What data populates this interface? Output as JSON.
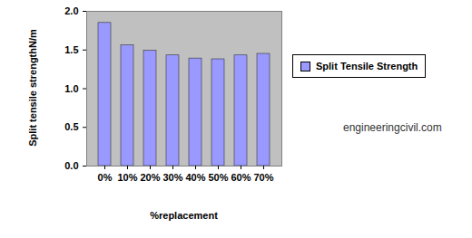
{
  "chart_data": {
    "type": "bar",
    "categories": [
      "0%",
      "10%",
      "20%",
      "30%",
      "40%",
      "50%",
      "60%",
      "70%"
    ],
    "series": [
      {
        "name": "Split Tensile Strength",
        "color": "#9999ff",
        "values": [
          1.85,
          1.56,
          1.49,
          1.43,
          1.39,
          1.38,
          1.43,
          1.45
        ]
      }
    ],
    "x_label": "%replacement",
    "y_label": "Split tensile strengthN/m",
    "annotations": [
      "engineeringcivil.com"
    ],
    "ylim": [
      0,
      2
    ],
    "yticks": [
      0,
      0.5,
      1,
      1.5,
      2
    ],
    "grid": false,
    "legend": "right"
  }
}
